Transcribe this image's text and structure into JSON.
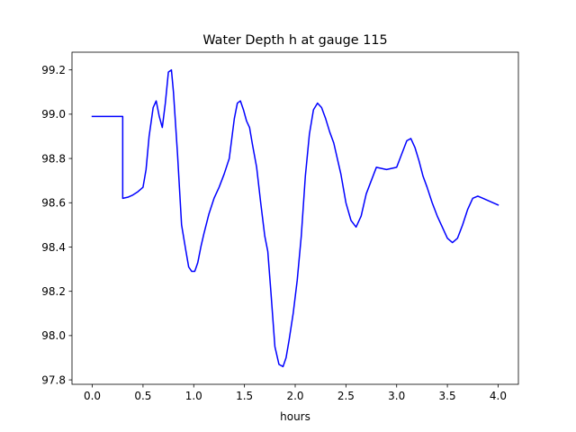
{
  "chart_data": {
    "type": "line",
    "title": "Water Depth h at gauge 115",
    "xlabel": "hours",
    "ylabel": "",
    "xlim": [
      -0.2,
      4.2
    ],
    "ylim": [
      97.78,
      99.28
    ],
    "xticks": [
      0.0,
      0.5,
      1.0,
      1.5,
      2.0,
      2.5,
      3.0,
      3.5,
      4.0
    ],
    "xtick_labels": [
      "0.0",
      "0.5",
      "1.0",
      "1.5",
      "2.0",
      "2.5",
      "3.0",
      "3.5",
      "4.0"
    ],
    "yticks": [
      97.8,
      98.0,
      98.2,
      98.4,
      98.6,
      98.8,
      99.0,
      99.2
    ],
    "ytick_labels": [
      "97.8",
      "98.0",
      "98.2",
      "98.4",
      "98.6",
      "98.8",
      "99.0",
      "99.2"
    ],
    "grid": false,
    "legend": "none",
    "series": [
      {
        "color": "#0000ff",
        "x": [
          0.0,
          0.1,
          0.2,
          0.29,
          0.3,
          0.3,
          0.35,
          0.4,
          0.45,
          0.5,
          0.53,
          0.56,
          0.6,
          0.63,
          0.66,
          0.69,
          0.72,
          0.75,
          0.78,
          0.8,
          0.84,
          0.88,
          0.92,
          0.95,
          0.98,
          1.01,
          1.04,
          1.07,
          1.1,
          1.15,
          1.2,
          1.25,
          1.3,
          1.35,
          1.4,
          1.43,
          1.46,
          1.49,
          1.52,
          1.55,
          1.58,
          1.62,
          1.66,
          1.7,
          1.73,
          1.76,
          1.8,
          1.84,
          1.88,
          1.91,
          1.94,
          1.98,
          2.02,
          2.06,
          2.1,
          2.14,
          2.18,
          2.22,
          2.26,
          2.3,
          2.34,
          2.38,
          2.45,
          2.5,
          2.55,
          2.6,
          2.65,
          2.7,
          2.8,
          2.9,
          3.0,
          3.05,
          3.1,
          3.14,
          3.18,
          3.22,
          3.26,
          3.3,
          3.35,
          3.4,
          3.45,
          3.5,
          3.55,
          3.6,
          3.65,
          3.7,
          3.75,
          3.8,
          3.85,
          3.9,
          4.0
        ],
        "y": [
          98.99,
          98.99,
          98.99,
          98.99,
          98.99,
          98.62,
          98.625,
          98.635,
          98.65,
          98.67,
          98.75,
          98.9,
          99.03,
          99.06,
          98.99,
          98.94,
          99.05,
          99.19,
          99.2,
          99.1,
          98.82,
          98.5,
          98.39,
          98.31,
          98.29,
          98.29,
          98.33,
          98.4,
          98.46,
          98.55,
          98.62,
          98.67,
          98.73,
          98.8,
          98.98,
          99.05,
          99.06,
          99.02,
          98.97,
          98.94,
          98.86,
          98.76,
          98.6,
          98.45,
          98.38,
          98.2,
          97.95,
          97.87,
          97.86,
          97.9,
          97.98,
          98.1,
          98.25,
          98.45,
          98.72,
          98.91,
          99.02,
          99.05,
          99.03,
          98.98,
          98.92,
          98.87,
          98.73,
          98.6,
          98.52,
          98.49,
          98.54,
          98.64,
          98.76,
          98.75,
          98.76,
          98.82,
          98.88,
          98.89,
          98.85,
          98.79,
          98.72,
          98.67,
          98.6,
          98.54,
          98.49,
          98.44,
          98.42,
          98.44,
          98.5,
          98.57,
          98.62,
          98.63,
          98.62,
          98.61,
          98.59
        ]
      }
    ]
  }
}
